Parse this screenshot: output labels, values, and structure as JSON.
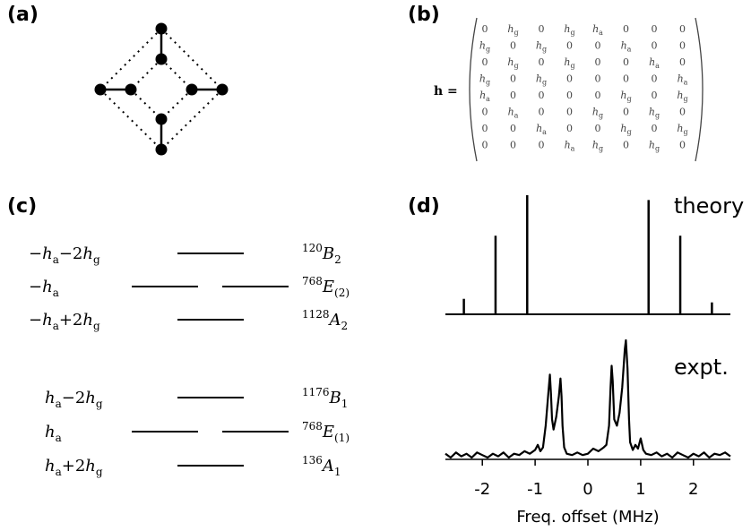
{
  "panels": {
    "a": "(a)",
    "b": "(b)",
    "c": "(c)",
    "d": "(d)"
  },
  "matrix": {
    "lhs": "h =",
    "rows": [
      [
        "0",
        "hg",
        "0",
        "hg",
        "ha",
        "0",
        "0",
        "0"
      ],
      [
        "hg",
        "0",
        "hg",
        "0",
        "0",
        "ha",
        "0",
        "0"
      ],
      [
        "0",
        "hg",
        "0",
        "hg",
        "0",
        "0",
        "ha",
        "0"
      ],
      [
        "hg",
        "0",
        "hg",
        "0",
        "0",
        "0",
        "0",
        "ha"
      ],
      [
        "ha",
        "0",
        "0",
        "0",
        "0",
        "hg",
        "0",
        "hg"
      ],
      [
        "0",
        "ha",
        "0",
        "0",
        "hg",
        "0",
        "hg",
        "0"
      ],
      [
        "0",
        "0",
        "ha",
        "0",
        "0",
        "hg",
        "0",
        "hg"
      ],
      [
        "0",
        "0",
        "0",
        "ha",
        "hg",
        "0",
        "hg",
        "0"
      ]
    ]
  },
  "levels": [
    {
      "energy": "−ha−2hg",
      "symmetry": "120B2",
      "degenerate": false
    },
    {
      "energy": "−ha",
      "symmetry": "768E(2)",
      "degenerate": true
    },
    {
      "energy": "−ha+2hg",
      "symmetry": "1128A2",
      "degenerate": false
    },
    {
      "energy": "ha−2hg",
      "symmetry": "1176B1",
      "degenerate": false
    },
    {
      "energy": "ha",
      "symmetry": "768E(1)",
      "degenerate": true
    },
    {
      "energy": "ha+2hg",
      "symmetry": "136A1",
      "degenerate": false
    }
  ],
  "chart_data": {
    "type": "line",
    "xlabel": "Freq. offset (MHz)",
    "xlim": [
      -2.7,
      2.7
    ],
    "xticks": [
      "-2",
      "-1",
      "0",
      "1",
      "2"
    ],
    "theory": {
      "name": "theory",
      "sticks": [
        {
          "x": -2.35,
          "y": 0.13
        },
        {
          "x": -1.75,
          "y": 0.66
        },
        {
          "x": -1.15,
          "y": 1.0
        },
        {
          "x": 1.15,
          "y": 0.96
        },
        {
          "x": 1.75,
          "y": 0.66
        },
        {
          "x": 2.35,
          "y": 0.1
        }
      ]
    },
    "experiment": {
      "name": "expt.",
      "x": [
        -2.7,
        -2.6,
        -2.5,
        -2.4,
        -2.3,
        -2.2,
        -2.1,
        -2.0,
        -1.9,
        -1.8,
        -1.7,
        -1.6,
        -1.5,
        -1.4,
        -1.3,
        -1.2,
        -1.1,
        -1.0,
        -0.95,
        -0.9,
        -0.85,
        -0.8,
        -0.75,
        -0.72,
        -0.7,
        -0.68,
        -0.65,
        -0.6,
        -0.55,
        -0.52,
        -0.5,
        -0.48,
        -0.45,
        -0.4,
        -0.3,
        -0.2,
        -0.1,
        0.0,
        0.1,
        0.2,
        0.3,
        0.35,
        0.4,
        0.43,
        0.45,
        0.47,
        0.5,
        0.55,
        0.6,
        0.65,
        0.7,
        0.72,
        0.75,
        0.78,
        0.8,
        0.85,
        0.9,
        0.95,
        1.0,
        1.05,
        1.1,
        1.2,
        1.3,
        1.4,
        1.5,
        1.6,
        1.7,
        1.8,
        1.9,
        2.0,
        2.1,
        2.2,
        2.3,
        2.4,
        2.5,
        2.6,
        2.7
      ],
      "y": [
        0.03,
        0.0,
        0.04,
        0.01,
        0.03,
        0.0,
        0.04,
        0.02,
        0.0,
        0.03,
        0.01,
        0.04,
        0.0,
        0.03,
        0.02,
        0.05,
        0.03,
        0.06,
        0.1,
        0.05,
        0.08,
        0.25,
        0.5,
        0.65,
        0.5,
        0.3,
        0.22,
        0.32,
        0.48,
        0.62,
        0.48,
        0.25,
        0.08,
        0.03,
        0.02,
        0.04,
        0.02,
        0.03,
        0.07,
        0.05,
        0.08,
        0.1,
        0.25,
        0.55,
        0.72,
        0.6,
        0.3,
        0.25,
        0.35,
        0.55,
        0.85,
        0.92,
        0.7,
        0.3,
        0.12,
        0.06,
        0.1,
        0.07,
        0.15,
        0.06,
        0.03,
        0.02,
        0.04,
        0.01,
        0.03,
        0.0,
        0.04,
        0.02,
        0.0,
        0.03,
        0.01,
        0.04,
        0.0,
        0.03,
        0.02,
        0.04,
        0.01
      ]
    }
  }
}
